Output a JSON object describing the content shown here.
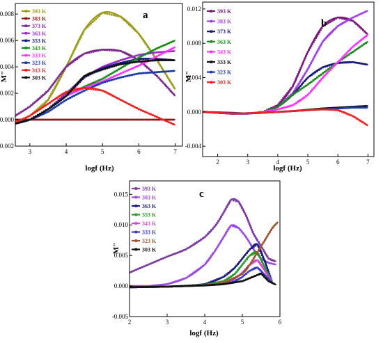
{
  "chart_data": [
    {
      "type": "line",
      "panel_label": "a",
      "xlabel": "logf (Hz)",
      "ylabel": "M\"",
      "xlim": [
        2.6,
        7.2
      ],
      "ylim": [
        -0.002,
        0.0088
      ],
      "xticks": [
        "3",
        "4",
        "5",
        "6",
        "7"
      ],
      "yticks": [
        "-0.002",
        "0.000",
        "0.002",
        "0.004",
        "0.006",
        "0.008"
      ],
      "grid": false,
      "legend_position": "top-left",
      "series": [
        {
          "name": "393 K",
          "color": "#9b9b1a",
          "x": [
            2.6,
            3.0,
            3.5,
            4.0,
            4.5,
            5.0,
            5.5,
            6.0,
            6.5,
            7.0
          ],
          "y": [
            -0.0003,
            0.0003,
            0.0015,
            0.004,
            0.0068,
            0.0081,
            0.0078,
            0.0065,
            0.0045,
            0.0023
          ]
        },
        {
          "name": "383 K",
          "color": "#8b1a1a",
          "x": [
            2.6,
            3.5,
            4.5,
            5.5,
            6.5,
            7.0
          ],
          "y": [
            0.0,
            0.0,
            0.0,
            0.0,
            0.0,
            0.0
          ]
        },
        {
          "name": "373 K",
          "color": "#7a2a8a",
          "x": [
            2.6,
            3.0,
            3.5,
            4.0,
            4.5,
            5.0,
            5.5,
            6.0,
            6.5,
            7.0
          ],
          "y": [
            0.0003,
            0.001,
            0.0022,
            0.004,
            0.005,
            0.0053,
            0.0052,
            0.0045,
            0.0033,
            0.0018
          ]
        },
        {
          "name": "363 K",
          "color": "#9a2fc8",
          "x": [
            2.6,
            3.0,
            3.5,
            4.0,
            4.5,
            5.0,
            5.5,
            6.0,
            6.5,
            7.0
          ],
          "y": [
            -0.0003,
            0.0,
            0.0008,
            0.002,
            0.0032,
            0.004,
            0.0045,
            0.0049,
            0.0051,
            0.0052
          ]
        },
        {
          "name": "353 K",
          "color": "#1a1a7a",
          "x": [
            2.6,
            3.0,
            3.5,
            4.0,
            4.5,
            5.0,
            5.5,
            6.0,
            6.5,
            7.0
          ],
          "y": [
            -0.0003,
            0.0,
            0.0008,
            0.0018,
            0.0032,
            0.0039,
            0.0043,
            0.0046,
            0.0046,
            0.0045
          ]
        },
        {
          "name": "343 K",
          "color": "#1a8a1a",
          "x": [
            2.6,
            3.0,
            3.5,
            4.0,
            4.5,
            5.0,
            5.5,
            6.0,
            6.5,
            7.0
          ],
          "y": [
            -0.0003,
            0.0,
            0.0008,
            0.0018,
            0.0025,
            0.0031,
            0.0039,
            0.0047,
            0.0054,
            0.006
          ]
        },
        {
          "name": "333 K",
          "color": "#ff33ff",
          "x": [
            2.6,
            3.0,
            3.5,
            4.0,
            4.5,
            5.0,
            5.5,
            6.0,
            6.5,
            7.0
          ],
          "y": [
            -0.0003,
            0.0,
            0.0008,
            0.0018,
            0.0024,
            0.0029,
            0.0035,
            0.0041,
            0.0048,
            0.0055
          ]
        },
        {
          "name": "323 K",
          "color": "#1a3aa8",
          "x": [
            2.6,
            3.0,
            3.5,
            4.0,
            4.5,
            5.0,
            5.5,
            6.0,
            6.5,
            7.0
          ],
          "y": [
            -0.0003,
            0.0,
            0.0006,
            0.0015,
            0.0022,
            0.0028,
            0.0032,
            0.0035,
            0.0036,
            0.0037
          ]
        },
        {
          "name": "313 K",
          "color": "#ee2222",
          "x": [
            2.6,
            3.0,
            3.5,
            4.0,
            4.5,
            5.0,
            5.5,
            6.0,
            6.5,
            7.0
          ],
          "y": [
            -0.0002,
            0.0003,
            0.0012,
            0.0021,
            0.0024,
            0.0022,
            0.0015,
            0.0008,
            0.0002,
            -0.0004
          ]
        },
        {
          "name": "303 K",
          "color": "#111111",
          "x": [
            2.6,
            3.0,
            3.5,
            4.0,
            4.5,
            5.0,
            5.5,
            6.0,
            6.5,
            7.0
          ],
          "y": [
            -0.0003,
            0.0,
            0.0008,
            0.0018,
            0.0033,
            0.0038,
            0.0042,
            0.0044,
            0.0045,
            0.0045
          ]
        }
      ]
    },
    {
      "type": "line",
      "panel_label": "b",
      "xlabel": "logf (Hz)",
      "ylabel": "M\"",
      "xlim": [
        1.5,
        7.2
      ],
      "ylim": [
        -0.0052,
        0.0128
      ],
      "xticks": [
        "2",
        "3",
        "4",
        "5",
        "6",
        "7"
      ],
      "yticks": [
        "-0.004",
        "0.000",
        "0.004",
        "0.008",
        "0.012"
      ],
      "grid": false,
      "legend_position": "top-left",
      "series": [
        {
          "name": "393 K",
          "color": "#7a1a7a",
          "x": [
            1.5,
            2.5,
            3.0,
            3.5,
            4.0,
            4.5,
            5.0,
            5.5,
            6.0,
            6.5,
            7.0
          ],
          "y": [
            0.0,
            -0.0001,
            -0.0002,
            0.0,
            0.0008,
            0.003,
            0.007,
            0.01,
            0.011,
            0.0106,
            0.009
          ]
        },
        {
          "name": "383 K",
          "color": "#a040e0",
          "x": [
            1.5,
            2.5,
            3.0,
            3.5,
            4.0,
            4.5,
            5.0,
            5.5,
            6.0,
            6.5,
            7.0
          ],
          "y": [
            0.0,
            -0.0002,
            -0.0002,
            0.0,
            0.0006,
            0.0022,
            0.005,
            0.0082,
            0.01,
            0.011,
            0.0118
          ]
        },
        {
          "name": "373 K",
          "color": "#1a1a7a",
          "x": [
            1.5,
            2.5,
            3.0,
            3.5,
            4.0,
            4.5,
            5.0,
            5.5,
            6.0,
            6.5,
            7.0
          ],
          "y": [
            0.0,
            -0.0002,
            -0.0002,
            0.0,
            0.0006,
            0.002,
            0.004,
            0.0052,
            0.0057,
            0.0058,
            0.0055
          ]
        },
        {
          "name": "363 K",
          "color": "#1a8a1a",
          "x": [
            1.5,
            2.5,
            3.0,
            3.5,
            4.0,
            4.5,
            5.0,
            5.5,
            6.0,
            6.5,
            7.0
          ],
          "y": [
            0.0,
            -0.0002,
            -0.0002,
            0.0,
            0.0006,
            0.002,
            0.0032,
            0.0045,
            0.0058,
            0.007,
            0.0082
          ]
        },
        {
          "name": "343 K",
          "color": "#ff33ff",
          "x": [
            1.5,
            2.5,
            3.0,
            3.5,
            4.0,
            4.5,
            5.0,
            5.5,
            6.0,
            6.5,
            7.0
          ],
          "y": [
            0.0,
            -0.0002,
            -0.0002,
            0.0,
            0.0003,
            0.0008,
            0.002,
            0.004,
            0.0058,
            0.0076,
            0.009
          ]
        },
        {
          "name": "333 K",
          "color": "#111111",
          "x": [
            1.5,
            2.5,
            3.5,
            4.5,
            5.5,
            6.5,
            7.0
          ],
          "y": [
            0.0,
            -0.0002,
            -0.0001,
            0.0001,
            0.0004,
            0.0006,
            0.0007
          ]
        },
        {
          "name": "323 K",
          "color": "#1a3aa8",
          "x": [
            1.5,
            2.5,
            3.5,
            4.5,
            5.5,
            6.5,
            7.0
          ],
          "y": [
            0.0,
            -0.0002,
            -0.0001,
            0.0001,
            0.0003,
            0.0005,
            0.0005
          ]
        },
        {
          "name": "303 K",
          "color": "#ee2222",
          "x": [
            1.5,
            2.5,
            3.5,
            4.5,
            5.5,
            6.0,
            6.5,
            7.0
          ],
          "y": [
            0.0,
            -0.0002,
            -0.0001,
            0.0001,
            0.0003,
            0.0002,
            -0.0005,
            -0.0016
          ]
        }
      ]
    },
    {
      "type": "line",
      "panel_label": "c",
      "xlabel": "logf (Hz)",
      "ylabel": "M\"",
      "xlim": [
        2.0,
        6.0
      ],
      "ylim": [
        -0.005,
        0.0172
      ],
      "xticks": [
        "2",
        "3",
        "4",
        "5",
        "6"
      ],
      "yticks": [
        "-0.005",
        "0.000",
        "0.005",
        "0.010",
        "0.015"
      ],
      "grid": false,
      "legend_position": "top-left",
      "series": [
        {
          "name": "393 K",
          "color": "#7a3aa0",
          "x": [
            2.0,
            2.5,
            3.0,
            3.5,
            4.0,
            4.3,
            4.5,
            4.7,
            4.9,
            5.1,
            5.3,
            5.5,
            5.7,
            5.9
          ],
          "y": [
            0.0022,
            0.0035,
            0.0048,
            0.006,
            0.008,
            0.01,
            0.012,
            0.0141,
            0.0138,
            0.0115,
            0.0085,
            0.0065,
            0.0045,
            0.004
          ]
        },
        {
          "name": "383 K",
          "color": "#9a4ae0",
          "x": [
            2.0,
            2.5,
            3.0,
            3.5,
            4.0,
            4.3,
            4.5,
            4.7,
            4.9,
            5.1,
            5.3,
            5.5,
            5.7,
            5.9
          ],
          "y": [
            0.0,
            0.0,
            0.0003,
            0.0013,
            0.0035,
            0.006,
            0.008,
            0.0099,
            0.0095,
            0.008,
            0.006,
            0.0045,
            0.0038,
            0.0035
          ]
        },
        {
          "name": "363 K",
          "color": "#1a1a7a",
          "x": [
            2.0,
            3.0,
            3.5,
            4.0,
            4.5,
            4.8,
            5.0,
            5.2,
            5.4,
            5.6,
            5.8
          ],
          "y": [
            -0.0002,
            -0.0001,
            0.0,
            0.0003,
            0.0015,
            0.003,
            0.0045,
            0.006,
            0.0068,
            0.004,
            0.0005
          ]
        },
        {
          "name": "353 K",
          "color": "#2a9a2a",
          "x": [
            2.0,
            3.0,
            4.0,
            4.5,
            4.8,
            5.0,
            5.2,
            5.4,
            5.6,
            5.8
          ],
          "y": [
            -0.0002,
            -0.0001,
            0.0002,
            0.0008,
            0.002,
            0.0035,
            0.005,
            0.0055,
            0.003,
            0.0005
          ]
        },
        {
          "name": "343 K",
          "color": "#d048d0",
          "x": [
            2.0,
            3.0,
            4.0,
            4.5,
            4.8,
            5.0,
            5.2,
            5.4,
            5.6,
            5.8
          ],
          "y": [
            -0.0002,
            -0.0001,
            0.0001,
            0.0005,
            0.0012,
            0.0022,
            0.0035,
            0.0042,
            0.0025,
            0.0005
          ]
        },
        {
          "name": "333 K",
          "color": "#3a3acc",
          "x": [
            2.0,
            3.0,
            4.0,
            4.5,
            4.8,
            5.0,
            5.2,
            5.4,
            5.6,
            5.8
          ],
          "y": [
            -0.0002,
            -0.0001,
            0.0001,
            0.0003,
            0.0008,
            0.0015,
            0.0025,
            0.003,
            0.0018,
            0.0005
          ]
        },
        {
          "name": "323 K",
          "color": "#a0522d",
          "x": [
            2.0,
            3.0,
            4.0,
            4.5,
            5.0,
            5.2,
            5.4,
            5.6,
            5.8,
            5.95
          ],
          "y": [
            -0.0002,
            -0.0001,
            0.0001,
            0.0005,
            0.002,
            0.0035,
            0.0055,
            0.0075,
            0.0095,
            0.0105
          ]
        },
        {
          "name": "303 K",
          "color": "#111111",
          "x": [
            2.0,
            3.0,
            4.0,
            4.5,
            5.0,
            5.2,
            5.4,
            5.5,
            5.7,
            5.9
          ],
          "y": [
            -0.0002,
            -0.0001,
            0.0001,
            0.0003,
            0.0008,
            0.0013,
            0.0018,
            0.002,
            0.0008,
            0.0002
          ]
        }
      ]
    }
  ]
}
